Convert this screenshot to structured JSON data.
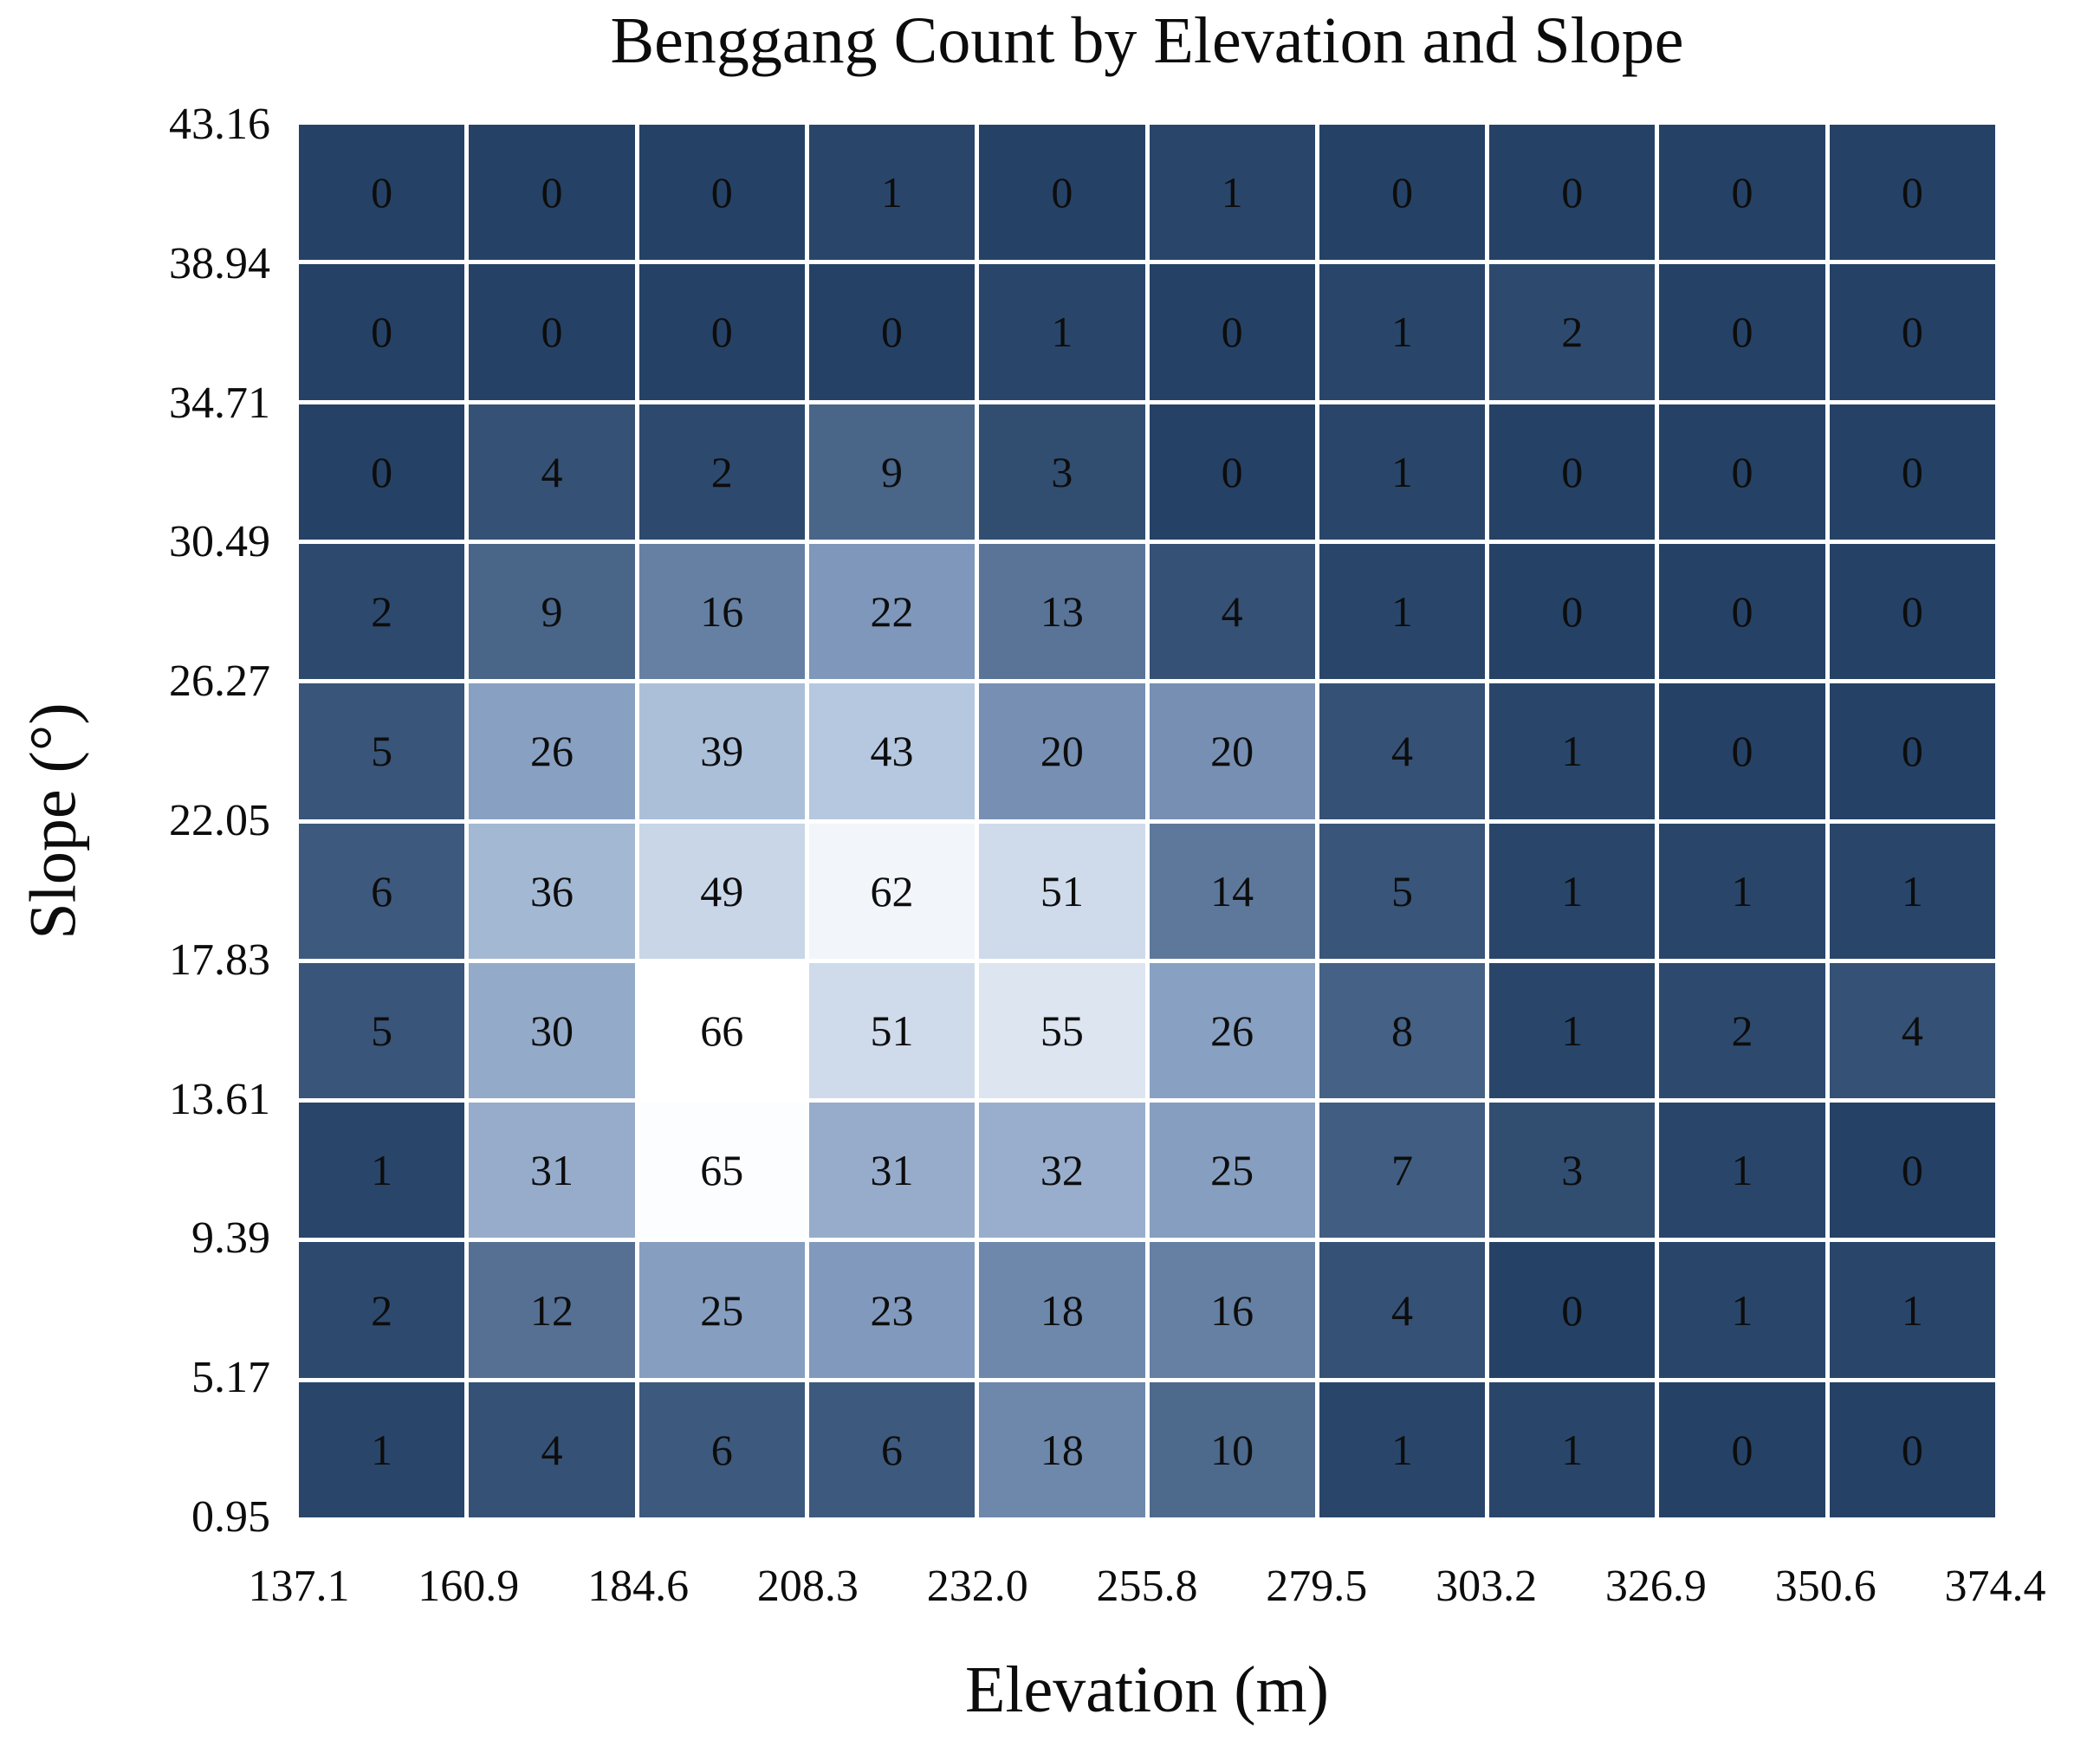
{
  "chart_data": {
    "type": "heatmap",
    "title": "Benggang Count by Elevation and Slope",
    "xlabel": "Elevation (m)",
    "ylabel": "Slope (°)",
    "x_tick_labels": [
      "137.1",
      "160.9",
      "184.6",
      "208.3",
      "232.0",
      "255.8",
      "279.5",
      "303.2",
      "326.9",
      "350.6",
      "374.4"
    ],
    "y_tick_labels_top_to_bottom": [
      "43.16",
      "38.94",
      "34.71",
      "30.49",
      "26.27",
      "22.05",
      "17.83",
      "13.61",
      "9.39",
      "5.17",
      "0.95"
    ],
    "values_rows_top_to_bottom": [
      [
        0,
        0,
        0,
        1,
        0,
        1,
        0,
        0,
        0,
        0
      ],
      [
        0,
        0,
        0,
        0,
        1,
        0,
        1,
        2,
        0,
        0
      ],
      [
        0,
        4,
        2,
        9,
        3,
        0,
        1,
        0,
        0,
        0
      ],
      [
        2,
        9,
        16,
        22,
        13,
        4,
        1,
        0,
        0,
        0
      ],
      [
        5,
        26,
        39,
        43,
        20,
        20,
        4,
        1,
        0,
        0
      ],
      [
        6,
        36,
        49,
        62,
        51,
        14,
        5,
        1,
        1,
        1
      ],
      [
        5,
        30,
        66,
        51,
        55,
        26,
        8,
        1,
        2,
        4
      ],
      [
        1,
        31,
        65,
        31,
        32,
        25,
        7,
        3,
        1,
        0
      ],
      [
        2,
        12,
        25,
        23,
        18,
        16,
        4,
        0,
        1,
        1
      ],
      [
        1,
        4,
        6,
        6,
        18,
        10,
        1,
        1,
        0,
        0
      ]
    ],
    "value_min": 0,
    "value_max": 66,
    "colormap_stops": [
      {
        "t": 0.0,
        "color": "#254266"
      },
      {
        "t": 0.3333,
        "color": "#7E97BA"
      },
      {
        "t": 0.6515,
        "color": "#B5C8E0"
      },
      {
        "t": 1.0,
        "color": "#FFFFFF"
      }
    ],
    "cell_text_color": "#0d0d0d",
    "gridline_color": "#ffffff",
    "legend": "none"
  },
  "layout_note_colors": {
    "background": "#ffffff",
    "text": "#0c0c0c"
  }
}
